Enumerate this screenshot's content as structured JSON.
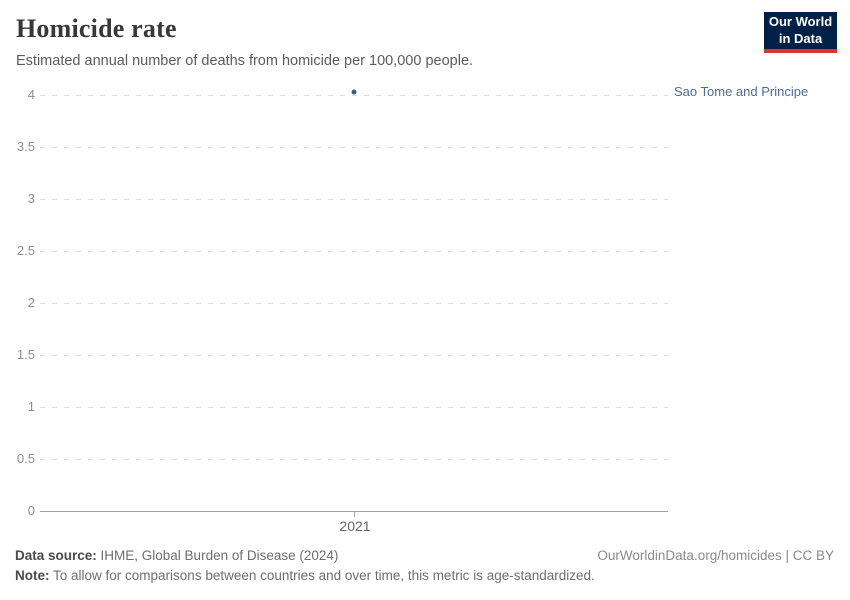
{
  "header": {
    "title": "Homicide rate",
    "subtitle": "Estimated annual number of deaths from homicide per 100,000 people.",
    "logo": {
      "line1": "Our World",
      "line2": "in Data",
      "bg_color": "#002147",
      "accent_color": "#d8352e"
    }
  },
  "chart_data": {
    "type": "scatter",
    "title": "Homicide rate",
    "subtitle": "Estimated annual number of deaths from homicide per 100,000 people.",
    "xlabel": "",
    "ylabel": "",
    "grid": "dashed-horizontal",
    "legend_position": "right-of-plot",
    "ylim": [
      0,
      4.1
    ],
    "y_ticks": [
      {
        "value": 0,
        "label": "0"
      },
      {
        "value": 0.5,
        "label": "0.5"
      },
      {
        "value": 1,
        "label": "1"
      },
      {
        "value": 1.5,
        "label": "1.5"
      },
      {
        "value": 2,
        "label": "2"
      },
      {
        "value": 2.5,
        "label": "2.5"
      },
      {
        "value": 3,
        "label": "3"
      },
      {
        "value": 3.5,
        "label": "3.5"
      },
      {
        "value": 4,
        "label": "4"
      }
    ],
    "x_ticks": [
      {
        "value": 2021,
        "label": "2021"
      }
    ],
    "series": [
      {
        "name": "Sao Tome and Principe",
        "color": "#3d5a8f",
        "label_color": "#4c6c9c",
        "points": [
          {
            "x": 2021,
            "y": 4.03
          }
        ]
      }
    ]
  },
  "footer": {
    "datasource_label": "Data source:",
    "datasource_value": " IHME, Global Burden of Disease (2024)",
    "note_label": "Note:",
    "note_value": " To allow for comparisons between countries and over time, this metric is age-standardized.",
    "link": "OurWorldinData.org/homicides | CC BY"
  }
}
